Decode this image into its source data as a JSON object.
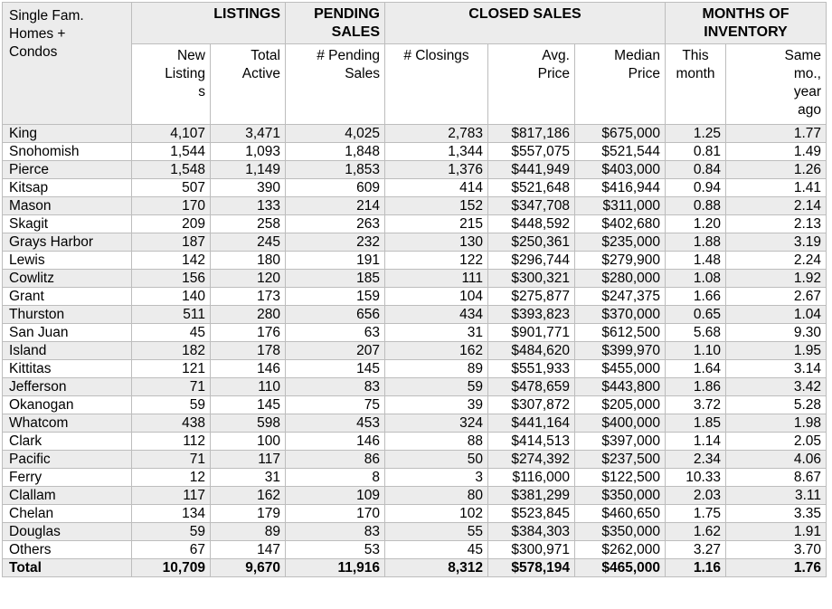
{
  "colors": {
    "background": "#ffffff",
    "stripe": "#ececec",
    "header_bg": "#ececec",
    "border": "#bdbdbd",
    "text": "#000000"
  },
  "table": {
    "corner_label": "Single Fam.\nHomes +\nCondos",
    "groups": [
      {
        "label": "LISTINGS"
      },
      {
        "label": "PENDING\nSALES"
      },
      {
        "label": "CLOSED SALES"
      },
      {
        "label": "MONTHS OF\nINVENTORY"
      }
    ],
    "column_headers": [
      "New\nListing\ns",
      "Total\nActive",
      "# Pending\nSales",
      "# Closings",
      "Avg.\nPrice",
      "Median\nPrice",
      "This\nmonth",
      "Same\nmo.,\nyear\nago"
    ],
    "column_keys": [
      "county",
      "new-listings",
      "total-active",
      "pending-sales",
      "closings",
      "avg-price",
      "median-price",
      "this-month",
      "same-month-year-ago"
    ]
  },
  "chart_data": {
    "type": "table",
    "columns": [
      "County",
      "New Listings",
      "Total Active",
      "# Pending Sales",
      "# Closings",
      "Avg. Price",
      "Median Price",
      "Months of Inventory - This month",
      "Months of Inventory - Same mo., year ago"
    ],
    "rows": [
      [
        "King",
        "4,107",
        "3,471",
        "4,025",
        "2,783",
        "$817,186",
        "$675,000",
        "1.25",
        "1.77"
      ],
      [
        "Snohomish",
        "1,544",
        "1,093",
        "1,848",
        "1,344",
        "$557,075",
        "$521,544",
        "0.81",
        "1.49"
      ],
      [
        "Pierce",
        "1,548",
        "1,149",
        "1,853",
        "1,376",
        "$441,949",
        "$403,000",
        "0.84",
        "1.26"
      ],
      [
        "Kitsap",
        "507",
        "390",
        "609",
        "414",
        "$521,648",
        "$416,944",
        "0.94",
        "1.41"
      ],
      [
        "Mason",
        "170",
        "133",
        "214",
        "152",
        "$347,708",
        "$311,000",
        "0.88",
        "2.14"
      ],
      [
        "Skagit",
        "209",
        "258",
        "263",
        "215",
        "$448,592",
        "$402,680",
        "1.20",
        "2.13"
      ],
      [
        "Grays Harbor",
        "187",
        "245",
        "232",
        "130",
        "$250,361",
        "$235,000",
        "1.88",
        "3.19"
      ],
      [
        "Lewis",
        "142",
        "180",
        "191",
        "122",
        "$296,744",
        "$279,900",
        "1.48",
        "2.24"
      ],
      [
        "Cowlitz",
        "156",
        "120",
        "185",
        "111",
        "$300,321",
        "$280,000",
        "1.08",
        "1.92"
      ],
      [
        "Grant",
        "140",
        "173",
        "159",
        "104",
        "$275,877",
        "$247,375",
        "1.66",
        "2.67"
      ],
      [
        "Thurston",
        "511",
        "280",
        "656",
        "434",
        "$393,823",
        "$370,000",
        "0.65",
        "1.04"
      ],
      [
        "San Juan",
        "45",
        "176",
        "63",
        "31",
        "$901,771",
        "$612,500",
        "5.68",
        "9.30"
      ],
      [
        "Island",
        "182",
        "178",
        "207",
        "162",
        "$484,620",
        "$399,970",
        "1.10",
        "1.95"
      ],
      [
        "Kittitas",
        "121",
        "146",
        "145",
        "89",
        "$551,933",
        "$455,000",
        "1.64",
        "3.14"
      ],
      [
        "Jefferson",
        "71",
        "110",
        "83",
        "59",
        "$478,659",
        "$443,800",
        "1.86",
        "3.42"
      ],
      [
        "Okanogan",
        "59",
        "145",
        "75",
        "39",
        "$307,872",
        "$205,000",
        "3.72",
        "5.28"
      ],
      [
        "Whatcom",
        "438",
        "598",
        "453",
        "324",
        "$441,164",
        "$400,000",
        "1.85",
        "1.98"
      ],
      [
        "Clark",
        "112",
        "100",
        "146",
        "88",
        "$414,513",
        "$397,000",
        "1.14",
        "2.05"
      ],
      [
        "Pacific",
        "71",
        "117",
        "86",
        "50",
        "$274,392",
        "$237,500",
        "2.34",
        "4.06"
      ],
      [
        "Ferry",
        "12",
        "31",
        "8",
        "3",
        "$116,000",
        "$122,500",
        "10.33",
        "8.67"
      ],
      [
        "Clallam",
        "117",
        "162",
        "109",
        "80",
        "$381,299",
        "$350,000",
        "2.03",
        "3.11"
      ],
      [
        "Chelan",
        "134",
        "179",
        "170",
        "102",
        "$523,845",
        "$460,650",
        "1.75",
        "3.35"
      ],
      [
        "Douglas",
        "59",
        "89",
        "83",
        "55",
        "$384,303",
        "$350,000",
        "1.62",
        "1.91"
      ],
      [
        "Others",
        "67",
        "147",
        "53",
        "45",
        "$300,971",
        "$262,000",
        "3.27",
        "3.70"
      ]
    ],
    "totals": {
      "label": "Total",
      "values": [
        "10,709",
        "9,670",
        "11,916",
        "8,312",
        "$578,194",
        "$465,000",
        "1.16",
        "1.76"
      ]
    }
  }
}
